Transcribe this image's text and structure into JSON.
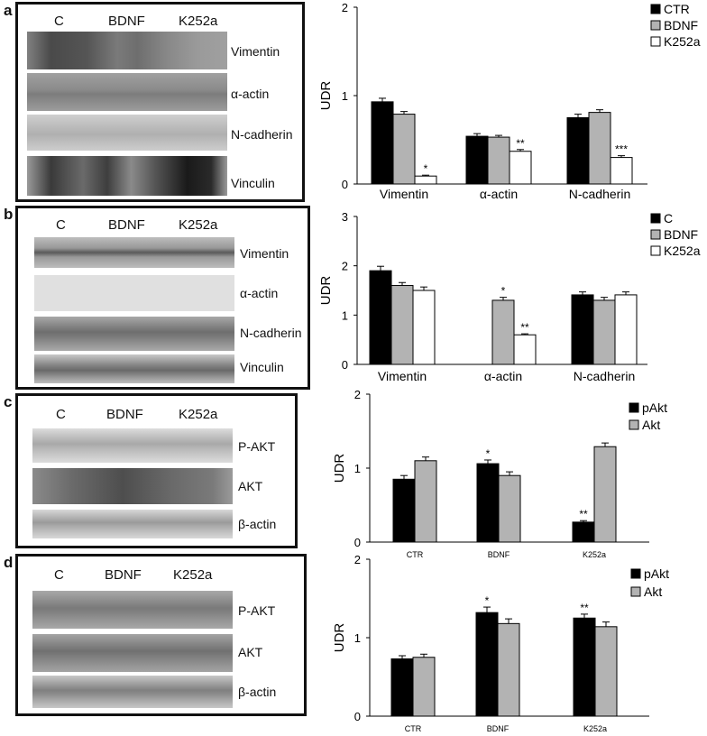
{
  "colors": {
    "black": "#000000",
    "grey": "#b3b3b3",
    "white": "#ffffff",
    "frame": "#111111"
  },
  "panels": [
    {
      "letter": "a",
      "lanes": [
        "C",
        "BDNF",
        "K252a"
      ],
      "bands": [
        "Vimentin",
        "α-actin",
        "N-cadherin",
        "Vinculin"
      ],
      "chart_data": {
        "type": "bar",
        "categories": [
          "Vimentin",
          "α-actin",
          "N-cadherin"
        ],
        "series": [
          {
            "name": "CTR",
            "values": [
              0.93,
              0.54,
              0.75
            ],
            "errors": [
              0.04,
              0.03,
              0.04
            ],
            "color": "#000000",
            "stars": [
              "",
              "",
              ""
            ]
          },
          {
            "name": "BDNF",
            "values": [
              0.79,
              0.53,
              0.81
            ],
            "errors": [
              0.03,
              0.02,
              0.03
            ],
            "color": "#b3b3b3",
            "stars": [
              "",
              "",
              ""
            ]
          },
          {
            "name": "K252a",
            "values": [
              0.09,
              0.37,
              0.3
            ],
            "errors": [
              0.01,
              0.02,
              0.02
            ],
            "color": "#ffffff",
            "stars": [
              "*",
              "**",
              "***"
            ]
          }
        ],
        "ylabel": "UDR",
        "ylim": [
          0,
          2
        ],
        "yticks": [
          "0",
          "1",
          "2"
        ],
        "legend_position": "top-right"
      }
    },
    {
      "letter": "b",
      "lanes": [
        "C",
        "BDNF",
        "K252a"
      ],
      "bands": [
        "Vimentin",
        "α-actin",
        "N-cadherin",
        "Vinculin"
      ],
      "chart_data": {
        "type": "bar",
        "categories": [
          "Vimentin",
          "α-actin",
          "N-cadherin"
        ],
        "series": [
          {
            "name": "C",
            "values": [
              1.9,
              0,
              1.41
            ],
            "errors": [
              0.09,
              0,
              0.06
            ],
            "color": "#000000",
            "stars": [
              "",
              "",
              ""
            ]
          },
          {
            "name": "BDNF",
            "values": [
              1.6,
              1.3,
              1.3
            ],
            "errors": [
              0.06,
              0.06,
              0.06
            ],
            "color": "#b3b3b3",
            "stars": [
              "",
              "*",
              ""
            ]
          },
          {
            "name": "K252a",
            "values": [
              1.5,
              0.6,
              1.41
            ],
            "errors": [
              0.07,
              0.02,
              0.06
            ],
            "color": "#ffffff",
            "stars": [
              "",
              "**",
              ""
            ]
          }
        ],
        "ylabel": "UDR",
        "ylim": [
          0,
          3
        ],
        "yticks": [
          "0",
          "1",
          "2",
          "3"
        ],
        "legend_position": "top-right"
      }
    },
    {
      "letter": "c",
      "lanes": [
        "C",
        "BDNF",
        "K252a"
      ],
      "bands": [
        "P-AKT",
        "AKT",
        "β-actin"
      ],
      "chart_data": {
        "type": "bar",
        "categories": [
          "CTR",
          "BDNF",
          "K252a"
        ],
        "series": [
          {
            "name": "pAkt",
            "values": [
              0.85,
              1.06,
              0.27
            ],
            "errors": [
              0.05,
              0.05,
              0.02
            ],
            "color": "#000000",
            "stars": [
              "",
              "*",
              "**"
            ]
          },
          {
            "name": "Akt",
            "values": [
              1.1,
              0.9,
              1.29
            ],
            "errors": [
              0.05,
              0.05,
              0.05
            ],
            "color": "#b3b3b3",
            "stars": [
              "",
              "",
              ""
            ]
          }
        ],
        "ylabel": "UDR",
        "ylim": [
          0,
          2
        ],
        "yticks": [
          "0",
          "1",
          "2"
        ],
        "legend_position": "top-right"
      }
    },
    {
      "letter": "d",
      "lanes": [
        "C",
        "BDNF",
        "K252a"
      ],
      "bands": [
        "P-AKT",
        "AKT",
        "β-actin"
      ],
      "chart_data": {
        "type": "bar",
        "categories": [
          "CTR",
          "BDNF",
          "K252a"
        ],
        "series": [
          {
            "name": "pAkt",
            "values": [
              0.73,
              1.32,
              1.25
            ],
            "errors": [
              0.04,
              0.07,
              0.05
            ],
            "color": "#000000",
            "stars": [
              "",
              "*",
              "**"
            ]
          },
          {
            "name": "Akt",
            "values": [
              0.75,
              1.18,
              1.14
            ],
            "errors": [
              0.04,
              0.06,
              0.06
            ],
            "color": "#b3b3b3",
            "stars": [
              "",
              "",
              ""
            ]
          }
        ],
        "ylabel": "UDR",
        "ylim": [
          0,
          2
        ],
        "yticks": [
          "0",
          "1",
          "2"
        ],
        "legend_position": "top-right"
      }
    }
  ]
}
